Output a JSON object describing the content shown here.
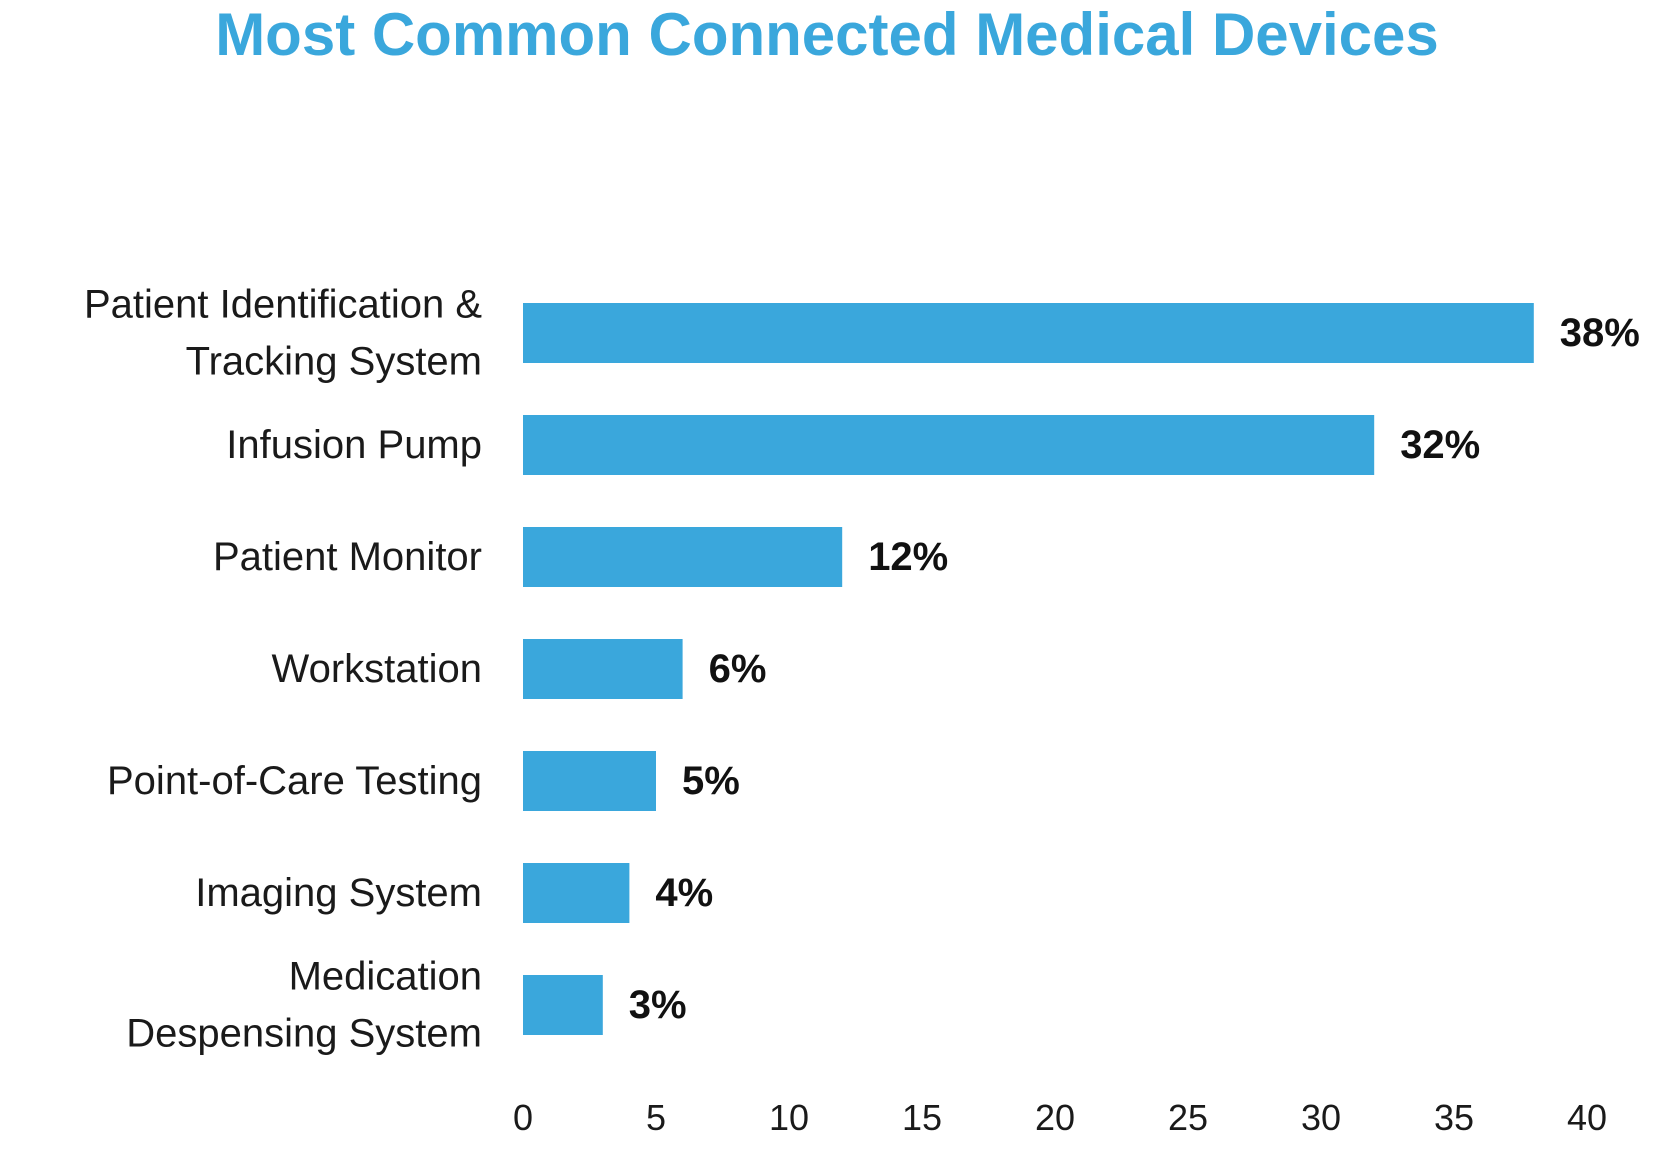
{
  "chart_data": {
    "type": "bar",
    "orientation": "horizontal",
    "title": "Most Common Connected Medical Devices",
    "xlabel": "",
    "ylabel": "",
    "categories": [
      [
        "Patient Identification &",
        "Tracking System"
      ],
      [
        "Infusion Pump"
      ],
      [
        "Patient Monitor"
      ],
      [
        "Workstation"
      ],
      [
        "Point-of-Care Testing"
      ],
      [
        "Imaging System"
      ],
      [
        "Medication",
        "Despensing System"
      ]
    ],
    "values": [
      38,
      32,
      12,
      6,
      5,
      4,
      3
    ],
    "value_labels": [
      "38%",
      "32%",
      "12%",
      "6%",
      "5%",
      "4%",
      "3%"
    ],
    "xlim": [
      0,
      40
    ],
    "xticks": [
      0,
      5,
      10,
      15,
      20,
      25,
      30,
      35,
      40
    ],
    "grid": false,
    "legend": "none",
    "colors": {
      "bar": "#3aa7dc",
      "title": "#3aa7dc",
      "value_text": "#111111"
    }
  }
}
